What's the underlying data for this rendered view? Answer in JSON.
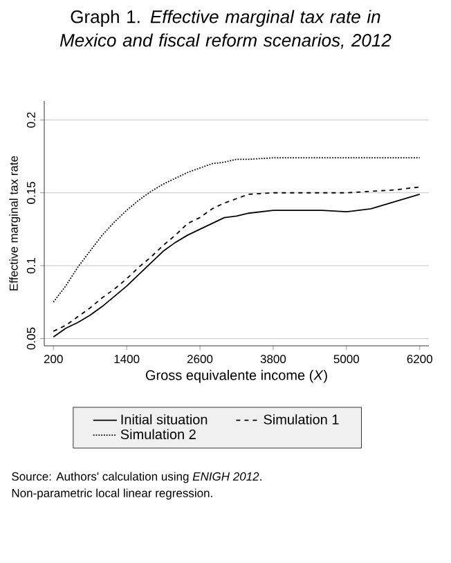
{
  "chart_data": {
    "type": "line",
    "title": "Graph 1.  *Effective marginal tax rate in Mexico and fiscal reform scenarios, 2012*",
    "xlabel": "Gross equivalente income (*X*)",
    "ylabel": "Effective marginal tax rate",
    "x": [
      200,
      400,
      600,
      800,
      1000,
      1200,
      1400,
      1600,
      1800,
      2000,
      2200,
      2400,
      2600,
      2800,
      3000,
      3200,
      3400,
      3800,
      4200,
      4600,
      5000,
      5400,
      5800,
      6200
    ],
    "series": [
      {
        "name": "Initial situation",
        "color": "#000000",
        "line_style": "solid",
        "values": [
          0.051,
          0.057,
          0.061,
          0.066,
          0.072,
          0.079,
          0.086,
          0.094,
          0.102,
          0.11,
          0.116,
          0.121,
          0.125,
          0.129,
          0.133,
          0.134,
          0.136,
          0.138,
          0.138,
          0.138,
          0.137,
          0.139,
          0.144,
          0.149
        ]
      },
      {
        "name": "Simulation 1",
        "color": "#000000",
        "line_style": "dashed",
        "values": [
          0.055,
          0.059,
          0.065,
          0.071,
          0.078,
          0.084,
          0.091,
          0.099,
          0.106,
          0.114,
          0.121,
          0.129,
          0.133,
          0.139,
          0.143,
          0.146,
          0.149,
          0.15,
          0.15,
          0.15,
          0.15,
          0.151,
          0.152,
          0.154
        ]
      },
      {
        "name": "Simulation 2",
        "color": "#000000",
        "line_style": "dotted",
        "values": [
          0.075,
          0.086,
          0.099,
          0.11,
          0.121,
          0.13,
          0.138,
          0.145,
          0.151,
          0.156,
          0.16,
          0.164,
          0.167,
          0.17,
          0.171,
          0.173,
          0.173,
          0.174,
          0.174,
          0.174,
          0.174,
          0.174,
          0.174,
          0.174
        ]
      }
    ],
    "xlim": [
      50,
      6350
    ],
    "ylim": [
      0.045,
      0.213
    ],
    "xticks": [
      200,
      1400,
      2600,
      3800,
      5000,
      6200
    ],
    "yticks": [
      0.05,
      0.1,
      0.15,
      0.2
    ],
    "grid": "y",
    "legend": "bottom",
    "annotations": [
      "Source: Authors' calculation using *ENIGH 2012*.",
      "Non-parametric local linear regression."
    ]
  }
}
